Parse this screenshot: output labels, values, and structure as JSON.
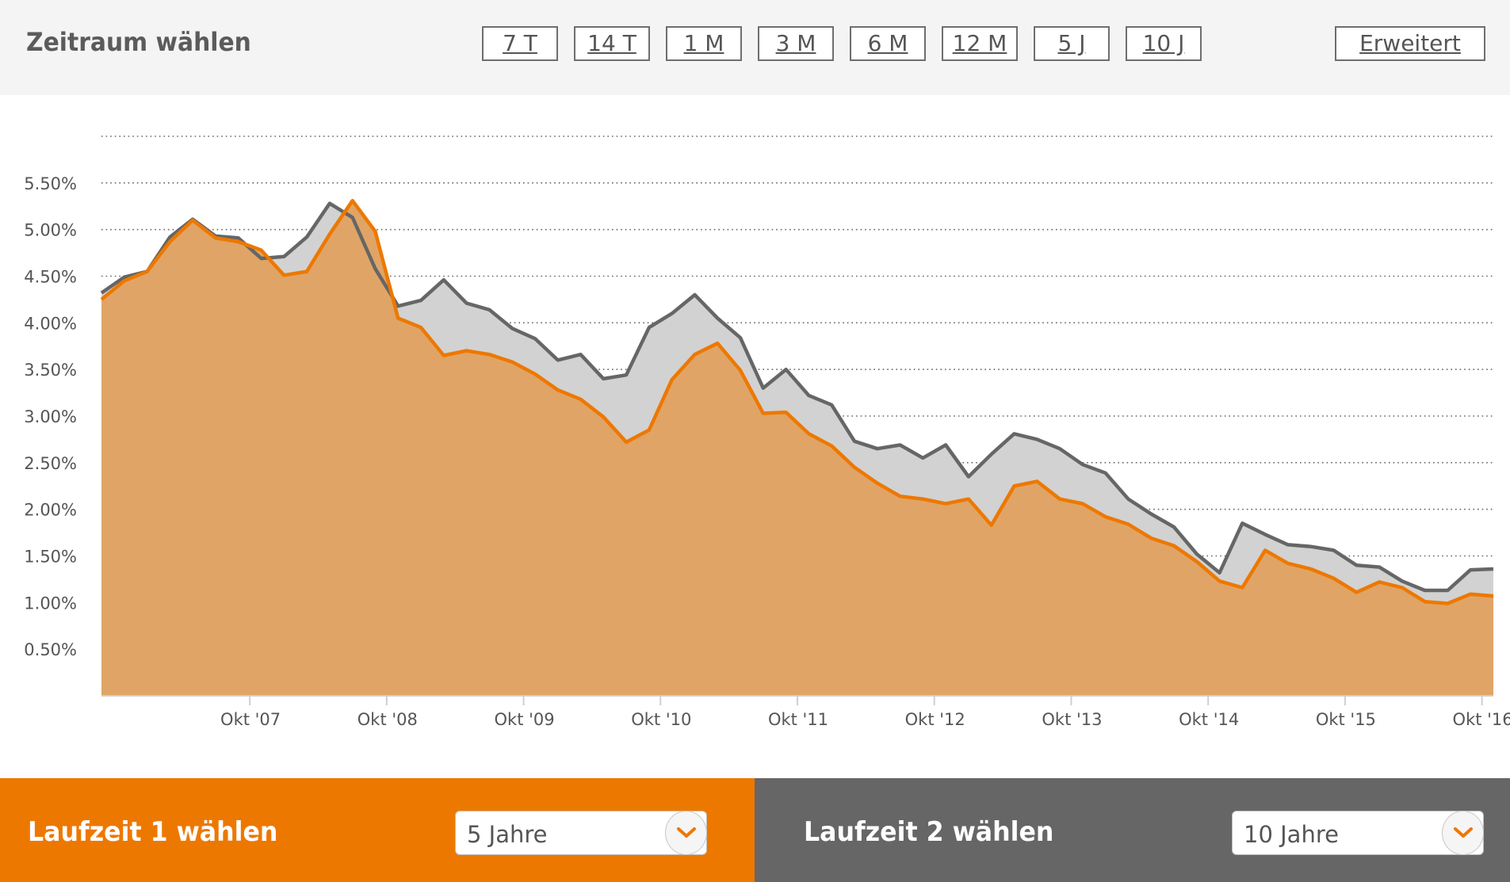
{
  "header": {
    "title": "Zeitraum wählen",
    "ranges": [
      "7 T",
      "14 T",
      "1 M",
      "3 M",
      "6 M",
      "12 M",
      "5 J",
      "10 J"
    ],
    "advanced_label": "Erweitert"
  },
  "chart_data": {
    "type": "area",
    "x_ticks": [
      "Okt '07",
      "Okt '08",
      "Okt '09",
      "Okt '10",
      "Okt '11",
      "Okt '12",
      "Okt '13",
      "Okt '14",
      "Okt '15",
      "Okt '16"
    ],
    "y_ticks": [
      "5.50%",
      "5.00%",
      "4.50%",
      "4.00%",
      "3.50%",
      "3.00%",
      "2.50%",
      "2.00%",
      "1.50%",
      "1.00%",
      "0.50%"
    ],
    "ylim": [
      0,
      6.0
    ],
    "grid": true,
    "colors": {
      "series1": "#ed7800",
      "series1_fill": "#e0a466",
      "series2": "#666666",
      "series2_fill": "#d2d2d2"
    },
    "dates": [
      "2006-09",
      "2006-11",
      "2007-01",
      "2007-03",
      "2007-05",
      "2007-07",
      "2007-09",
      "2007-11",
      "2008-01",
      "2008-03",
      "2008-05",
      "2008-07",
      "2008-09",
      "2008-11",
      "2009-01",
      "2009-03",
      "2009-05",
      "2009-07",
      "2009-09",
      "2009-11",
      "2010-01",
      "2010-03",
      "2010-05",
      "2010-07",
      "2010-09",
      "2010-11",
      "2011-01",
      "2011-03",
      "2011-05",
      "2011-07",
      "2011-09",
      "2011-11",
      "2012-01",
      "2012-03",
      "2012-05",
      "2012-07",
      "2012-09",
      "2012-11",
      "2013-01",
      "2013-03",
      "2013-05",
      "2013-07",
      "2013-09",
      "2013-11",
      "2014-01",
      "2014-03",
      "2014-05",
      "2014-07",
      "2014-09",
      "2014-11",
      "2015-01",
      "2015-03",
      "2015-05",
      "2015-07",
      "2015-09",
      "2015-11",
      "2016-01",
      "2016-03",
      "2016-05",
      "2016-07",
      "2016-09",
      "2016-11"
    ],
    "series": [
      {
        "name": "5 Jahre",
        "values": [
          4.25,
          4.45,
          4.55,
          4.87,
          5.1,
          4.91,
          4.87,
          4.78,
          4.51,
          4.55,
          4.95,
          5.31,
          4.98,
          4.05,
          3.95,
          3.65,
          3.7,
          3.66,
          3.58,
          3.45,
          3.28,
          3.18,
          2.99,
          2.72,
          2.85,
          3.39,
          3.66,
          3.78,
          3.49,
          3.03,
          3.04,
          2.81,
          2.68,
          2.45,
          2.28,
          2.14,
          2.11,
          2.06,
          2.11,
          1.83,
          2.25,
          2.3,
          2.11,
          2.06,
          1.92,
          1.84,
          1.69,
          1.61,
          1.44,
          1.23,
          1.16,
          1.56,
          1.42,
          1.36,
          1.26,
          1.11,
          1.22,
          1.16,
          1.01,
          0.99,
          1.09,
          1.07
        ]
      },
      {
        "name": "10 Jahre",
        "values": [
          4.32,
          4.49,
          4.55,
          4.92,
          5.11,
          4.93,
          4.91,
          4.69,
          4.71,
          4.92,
          5.28,
          5.13,
          4.58,
          4.18,
          4.24,
          4.46,
          4.21,
          4.14,
          3.94,
          3.83,
          3.6,
          3.66,
          3.4,
          3.44,
          3.95,
          4.1,
          4.3,
          4.05,
          3.84,
          3.3,
          3.5,
          3.22,
          3.12,
          2.73,
          2.65,
          2.69,
          2.55,
          2.69,
          2.35,
          2.59,
          2.81,
          2.75,
          2.65,
          2.48,
          2.39,
          2.11,
          1.95,
          1.81,
          1.52,
          1.32,
          1.85,
          1.73,
          1.62,
          1.6,
          1.56,
          1.4,
          1.38,
          1.23,
          1.13,
          1.13,
          1.35,
          1.36
        ]
      }
    ]
  },
  "laufzeit1": {
    "title": "Laufzeit 1 wählen",
    "value": "5 Jahre"
  },
  "laufzeit2": {
    "title": "Laufzeit 2 wählen",
    "value": "10 Jahre"
  }
}
